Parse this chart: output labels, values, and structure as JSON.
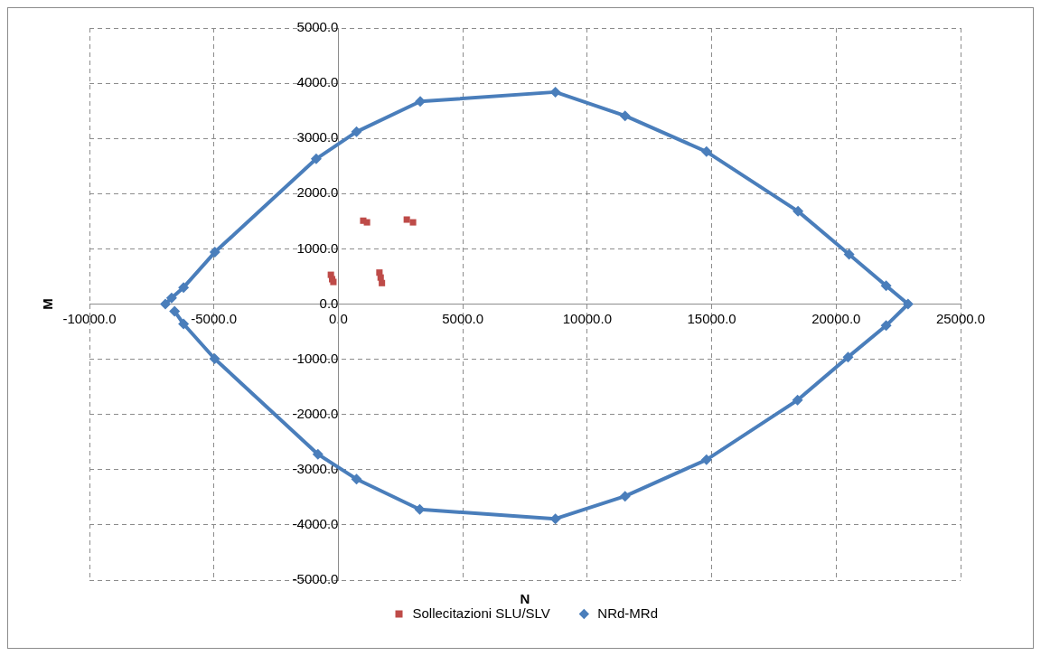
{
  "chart_data": {
    "type": "scatter",
    "xlabel": "N",
    "ylabel": "M",
    "xlim": [
      -10000,
      25000
    ],
    "xticks": [
      {
        "value": -10000,
        "label": "-10000.0"
      },
      {
        "value": -5000,
        "label": "-5000.0"
      },
      {
        "value": 0,
        "label": "0.0"
      },
      {
        "value": 5000,
        "label": "5000.0"
      },
      {
        "value": 10000,
        "label": "10000.0"
      },
      {
        "value": 15000,
        "label": "15000.0"
      },
      {
        "value": 20000,
        "label": "20000.0"
      },
      {
        "value": 25000,
        "label": "25000.0"
      }
    ],
    "ylim": [
      -5000,
      5000
    ],
    "yticks": [
      {
        "value": -5000,
        "label": "-5000.0"
      },
      {
        "value": -4000,
        "label": "-4000.0"
      },
      {
        "value": -3000,
        "label": "-3000.0"
      },
      {
        "value": -2000,
        "label": "-2000.0"
      },
      {
        "value": -1000,
        "label": "-1000.0"
      },
      {
        "value": 0,
        "label": "0.0"
      },
      {
        "value": 1000,
        "label": "1000.0"
      },
      {
        "value": 2000,
        "label": "2000.0"
      },
      {
        "value": 3000,
        "label": "3000.0"
      },
      {
        "value": 4000,
        "label": "4000.0"
      },
      {
        "value": 5000,
        "label": "5000.0"
      }
    ],
    "grid": true,
    "legend": "bottom",
    "series": [
      {
        "name": "Sollecitazioni SLU/SLV",
        "marker": "square",
        "color": "#be4b48",
        "x": [
          -300,
          -250,
          -200,
          1650,
          1700,
          1750,
          1000,
          1150,
          2750,
          3000
        ],
        "values": [
          530,
          450,
          400,
          570,
          480,
          380,
          1510,
          1480,
          1530,
          1480
        ]
      },
      {
        "name": "NRd-MRd",
        "type": "line",
        "marker": "diamond",
        "color": "#4a7ebb",
        "x": [
          -6950,
          -6700,
          -6220,
          -4960,
          -890,
          730,
          3290,
          8720,
          11520,
          14790,
          18470,
          20520,
          22010,
          22890,
          22010,
          20480,
          18450,
          14790,
          11520,
          8720,
          3270,
          730,
          -820,
          -4970,
          -6220,
          -6580
        ],
        "values": [
          0,
          110,
          300,
          940,
          2630,
          3120,
          3670,
          3840,
          3410,
          2760,
          1680,
          900,
          330,
          0,
          -390,
          -960,
          -1740,
          -2820,
          -3480,
          -3890,
          -3720,
          -3170,
          -2720,
          -990,
          -360,
          -130
        ]
      }
    ]
  }
}
